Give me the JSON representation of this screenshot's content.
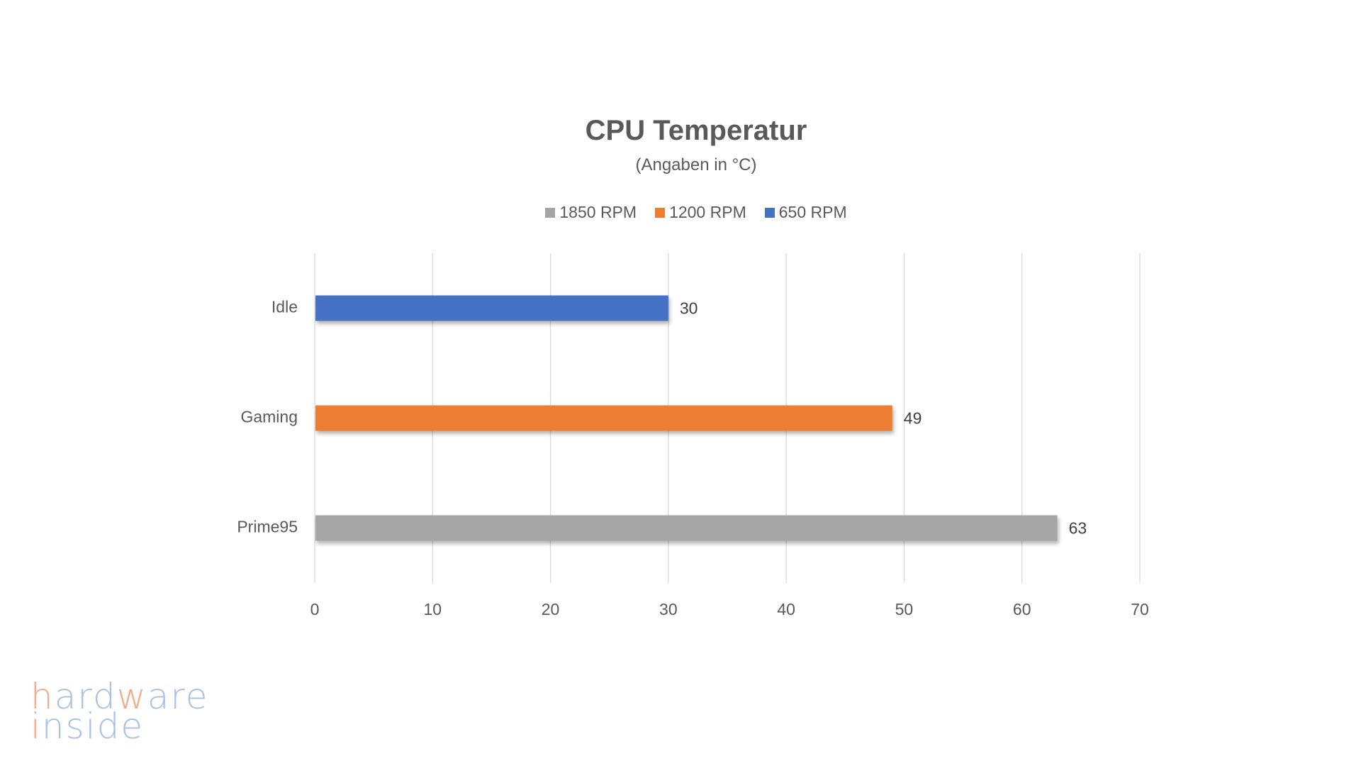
{
  "chart_data": {
    "type": "bar",
    "orientation": "horizontal",
    "title": "CPU Temperatur",
    "subtitle": "(Angaben in °C)",
    "categories": [
      "Idle",
      "Gaming",
      "Prime95"
    ],
    "series": [
      {
        "name": "1850 RPM",
        "color": "#a5a5a5"
      },
      {
        "name": "1200 RPM",
        "color": "#ed7d31"
      },
      {
        "name": "650 RPM",
        "color": "#4472c4"
      }
    ],
    "bars": [
      {
        "category": "Idle",
        "series": "650 RPM",
        "value": 30,
        "color": "#4472c4"
      },
      {
        "category": "Gaming",
        "series": "1200 RPM",
        "value": 49,
        "color": "#ed7d31"
      },
      {
        "category": "Prime95",
        "series": "1850 RPM",
        "value": 63,
        "color": "#a5a5a5"
      }
    ],
    "xlim": [
      0,
      70
    ],
    "xticks": [
      "0",
      "10",
      "20",
      "30",
      "40",
      "50",
      "60",
      "70"
    ],
    "grid": true,
    "legend_position": "top"
  },
  "logo": {
    "line1": "hardware",
    "line2": "inside",
    "accent": "#f4a98a",
    "main": "#a9c1e4"
  }
}
